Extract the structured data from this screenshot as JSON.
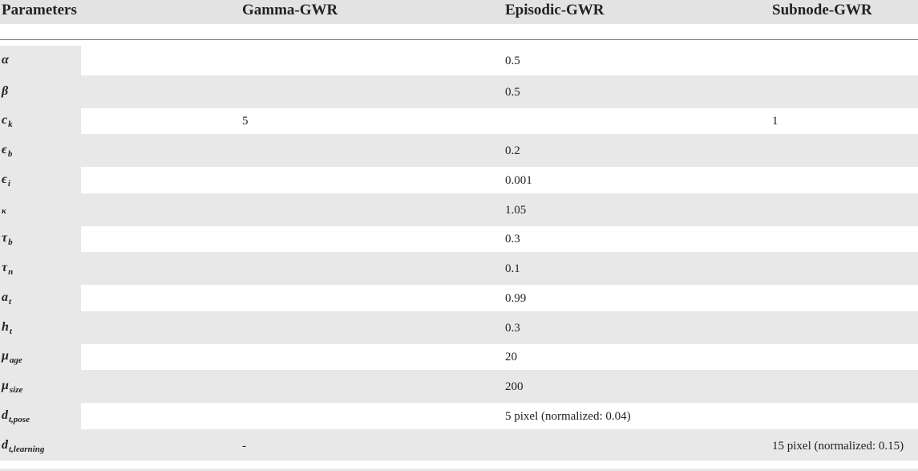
{
  "table": {
    "headers": [
      "Parameters",
      "Gamma-GWR",
      "Episodic-GWR",
      "Subnode-GWR"
    ],
    "rows": [
      {
        "symbol": "α",
        "sub": "",
        "gamma": "",
        "episodic": "0.5",
        "subnode": ""
      },
      {
        "symbol": "β",
        "sub": "",
        "gamma": "",
        "episodic": "0.5",
        "subnode": ""
      },
      {
        "symbol": "c",
        "sub": "k",
        "gamma": "5",
        "episodic": "",
        "subnode": "1"
      },
      {
        "symbol": "ϵ",
        "sub": "b",
        "gamma": "",
        "episodic": "0.2",
        "subnode": ""
      },
      {
        "symbol": "ϵ",
        "sub": "i",
        "gamma": "",
        "episodic": "0.001",
        "subnode": ""
      },
      {
        "symbol": "κ",
        "sub": "",
        "gamma": "",
        "episodic": "1.05",
        "subnode": ""
      },
      {
        "symbol": "τ",
        "sub": "b",
        "gamma": "",
        "episodic": "0.3",
        "subnode": ""
      },
      {
        "symbol": "τ",
        "sub": "n",
        "gamma": "",
        "episodic": "0.1",
        "subnode": ""
      },
      {
        "symbol": "a",
        "sub": "t",
        "gamma": "",
        "episodic": "0.99",
        "subnode": ""
      },
      {
        "symbol": "h",
        "sub": "t",
        "gamma": "",
        "episodic": "0.3",
        "subnode": ""
      },
      {
        "symbol": "μ",
        "sub": "age",
        "gamma": "",
        "episodic": "20",
        "subnode": ""
      },
      {
        "symbol": "μ",
        "sub": "size",
        "gamma": "",
        "episodic": "200",
        "subnode": ""
      },
      {
        "symbol": "d",
        "sub": "t,pose",
        "gamma": "",
        "episodic": "5 pixel (normalized: 0.04)",
        "subnode": ""
      },
      {
        "symbol": "d",
        "sub": "t,learning",
        "gamma": "-",
        "episodic": "",
        "subnode": "15 pixel (normalized: 0.15)"
      }
    ]
  }
}
